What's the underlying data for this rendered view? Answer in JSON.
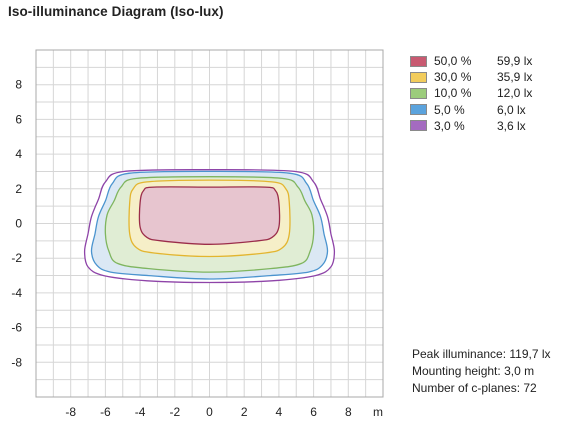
{
  "title": "Iso-illuminance Diagram (Iso-lux)",
  "legend": [
    {
      "percent": "50,0 %",
      "lux": "59,9 lx",
      "stroke": "#9b2d4a",
      "fill": "#e7c5cf",
      "swatch": "#c85a71"
    },
    {
      "percent": "30,0 %",
      "lux": "35,9 lx",
      "stroke": "#e3b52f",
      "fill": "#f6efc8",
      "swatch": "#f2cc5c"
    },
    {
      "percent": "10,0 %",
      "lux": "12,0 lx",
      "stroke": "#7fb55f",
      "fill": "#e0edd4",
      "swatch": "#9ccc7c"
    },
    {
      "percent": "5,0 %",
      "lux": "6,0 lx",
      "stroke": "#4b94cf",
      "fill": "#dbe8f4",
      "swatch": "#5ba3dd"
    },
    {
      "percent": "3,0 %",
      "lux": "3,6 lx",
      "stroke": "#8e44a8",
      "fill": "#ffffff",
      "swatch": "#a46bc0"
    }
  ],
  "info": {
    "peak": "Peak illuminance: 119,7 lx",
    "mounting": "Mounting height: 3,0 m",
    "cplanes": "Number of c-planes: 72"
  },
  "chart_data": {
    "type": "contour",
    "title": "Iso-illuminance Diagram (Iso-lux)",
    "x_unit": "m",
    "xlim": [
      -10,
      10
    ],
    "ylim": [
      -10,
      10
    ],
    "x_ticks": [
      -8,
      -6,
      -4,
      -2,
      0,
      2,
      4,
      6,
      8
    ],
    "y_ticks": [
      8,
      6,
      4,
      2,
      0,
      -2,
      -4,
      -6,
      -8
    ],
    "grid": true,
    "legend_position": "top-right",
    "contours": [
      {
        "level": "50,0 %",
        "lux": "59,9 lx",
        "points": [
          [
            -3.8,
            1.9
          ],
          [
            -3.2,
            2.1
          ],
          [
            0,
            2.1
          ],
          [
            3.2,
            2.1
          ],
          [
            3.8,
            1.9
          ],
          [
            4.0,
            1.2
          ],
          [
            4.0,
            -0.2
          ],
          [
            3.6,
            -0.8
          ],
          [
            2.8,
            -1.0
          ],
          [
            0,
            -1.2
          ],
          [
            -2.8,
            -1.0
          ],
          [
            -3.6,
            -0.8
          ],
          [
            -4.0,
            -0.2
          ],
          [
            -4.0,
            1.2
          ]
        ]
      },
      {
        "level": "30,0 %",
        "lux": "35,9 lx",
        "points": [
          [
            -4.4,
            2.0
          ],
          [
            -3.6,
            2.4
          ],
          [
            0,
            2.5
          ],
          [
            3.6,
            2.4
          ],
          [
            4.4,
            2.0
          ],
          [
            4.6,
            1.2
          ],
          [
            4.6,
            -0.6
          ],
          [
            4.2,
            -1.4
          ],
          [
            3.2,
            -1.7
          ],
          [
            0,
            -1.9
          ],
          [
            -3.2,
            -1.7
          ],
          [
            -4.2,
            -1.4
          ],
          [
            -4.6,
            -0.6
          ],
          [
            -4.6,
            1.2
          ]
        ]
      },
      {
        "level": "10,0 %",
        "lux": "12,0 lx",
        "points": [
          [
            -5.1,
            2.1
          ],
          [
            -4.2,
            2.6
          ],
          [
            0,
            2.7
          ],
          [
            4.2,
            2.6
          ],
          [
            5.1,
            2.1
          ],
          [
            5.5,
            1.3
          ],
          [
            5.9,
            0.5
          ],
          [
            6.0,
            -0.6
          ],
          [
            5.8,
            -1.6
          ],
          [
            5.3,
            -2.3
          ],
          [
            3.5,
            -2.6
          ],
          [
            0,
            -2.8
          ],
          [
            -3.5,
            -2.6
          ],
          [
            -5.3,
            -2.3
          ],
          [
            -5.8,
            -1.6
          ],
          [
            -6.0,
            -0.6
          ],
          [
            -5.9,
            0.5
          ],
          [
            -5.5,
            1.3
          ]
        ]
      },
      {
        "level": "5,0 %",
        "lux": "6,0 lx",
        "points": [
          [
            -5.6,
            2.3
          ],
          [
            -4.6,
            2.9
          ],
          [
            0,
            3.0
          ],
          [
            4.6,
            2.9
          ],
          [
            5.6,
            2.3
          ],
          [
            6.0,
            1.3
          ],
          [
            6.4,
            0.4
          ],
          [
            6.6,
            -0.6
          ],
          [
            6.8,
            -1.6
          ],
          [
            6.5,
            -2.4
          ],
          [
            5.7,
            -2.8
          ],
          [
            3.5,
            -3.0
          ],
          [
            0,
            -3.2
          ],
          [
            -3.5,
            -3.0
          ],
          [
            -5.7,
            -2.8
          ],
          [
            -6.5,
            -2.4
          ],
          [
            -6.8,
            -1.6
          ],
          [
            -6.6,
            -0.6
          ],
          [
            -6.4,
            0.4
          ],
          [
            -6.0,
            1.3
          ]
        ]
      },
      {
        "level": "3,0 %",
        "lux": "3,6 lx",
        "points": [
          [
            -6.0,
            2.4
          ],
          [
            -4.9,
            3.0
          ],
          [
            0,
            3.1
          ],
          [
            4.9,
            3.0
          ],
          [
            6.0,
            2.4
          ],
          [
            6.4,
            1.4
          ],
          [
            6.8,
            0.4
          ],
          [
            7.0,
            -0.6
          ],
          [
            7.2,
            -1.6
          ],
          [
            7.0,
            -2.5
          ],
          [
            6.1,
            -3.0
          ],
          [
            3.6,
            -3.3
          ],
          [
            0,
            -3.4
          ],
          [
            -3.6,
            -3.3
          ],
          [
            -6.1,
            -3.0
          ],
          [
            -7.0,
            -2.5
          ],
          [
            -7.2,
            -1.6
          ],
          [
            -7.0,
            -0.6
          ],
          [
            -6.8,
            0.4
          ],
          [
            -6.4,
            1.4
          ]
        ]
      }
    ]
  }
}
